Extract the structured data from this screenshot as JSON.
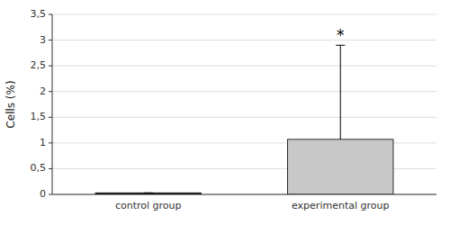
{
  "chart_data": {
    "type": "bar",
    "y_label": "Cells (%)",
    "categories": [
      "control group",
      "experimental group"
    ],
    "values": [
      0.03,
      1.07
    ],
    "errors_upper": [
      0.0,
      1.83
    ],
    "colors": [
      "#111111",
      "#c8c8c8"
    ],
    "ylim": [
      0,
      3.5
    ],
    "yticks": [
      0,
      {
        "value": 0.5,
        "label": "0,5"
      },
      1,
      {
        "value": 1.5,
        "label": "1,5"
      },
      2,
      {
        "value": 2.5,
        "label": "2,5"
      },
      3,
      {
        "value": 3.5,
        "label": "3,5"
      }
    ],
    "grid": true,
    "annotations": [
      {
        "text": "*",
        "x": "experimental group",
        "y": 3.0
      }
    ]
  }
}
